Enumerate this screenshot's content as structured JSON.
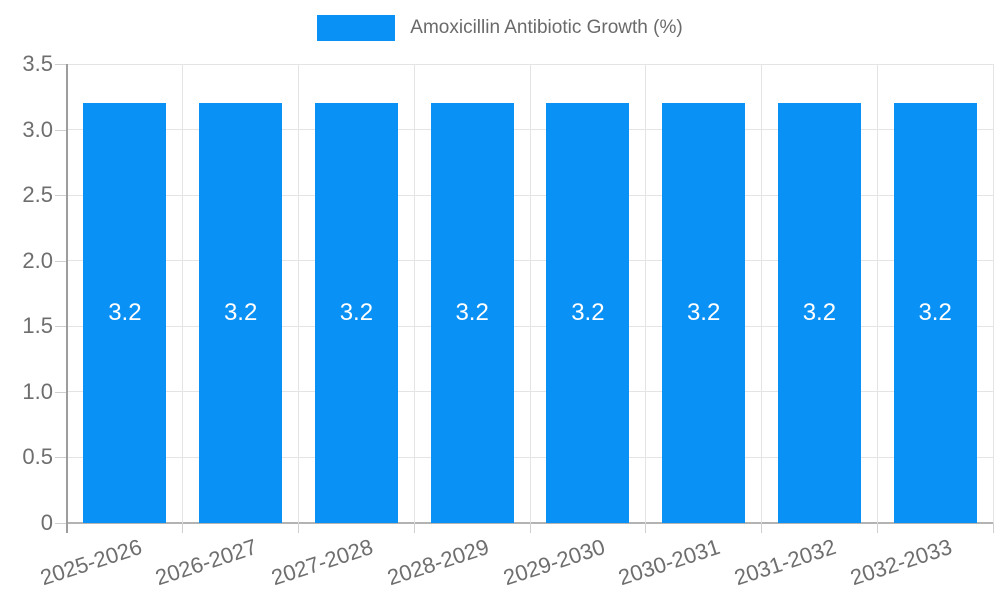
{
  "chart_data": {
    "type": "bar",
    "title": "",
    "legend": "Amoxicillin Antibiotic Growth (%)",
    "legend_position": "top",
    "categories": [
      "2025-2026",
      "2026-2027",
      "2027-2028",
      "2028-2029",
      "2029-2030",
      "2030-2031",
      "2031-2032",
      "2032-2033"
    ],
    "values": [
      3.2,
      3.2,
      3.2,
      3.2,
      3.2,
      3.2,
      3.2,
      3.2
    ],
    "bar_labels": [
      "3.2",
      "3.2",
      "3.2",
      "3.2",
      "3.2",
      "3.2",
      "3.2",
      "3.2"
    ],
    "y_ticks": [
      "0",
      "0.5",
      "1.0",
      "1.5",
      "2.0",
      "2.5",
      "3.0",
      "3.5"
    ],
    "ylim": [
      0,
      3.5
    ],
    "xlabel": "",
    "ylabel": "",
    "grid": true,
    "colors": {
      "bar": "#0a91f5",
      "grid": "#e4e4e4",
      "axis": "#9d9d9d",
      "baseline": "#b3b3b3",
      "tick": "#cfcfcf",
      "tick_label": "#6e6e6e",
      "legend_text": "#6a6a6a",
      "value_label": "#ffffff",
      "background": "#ffffff"
    }
  }
}
